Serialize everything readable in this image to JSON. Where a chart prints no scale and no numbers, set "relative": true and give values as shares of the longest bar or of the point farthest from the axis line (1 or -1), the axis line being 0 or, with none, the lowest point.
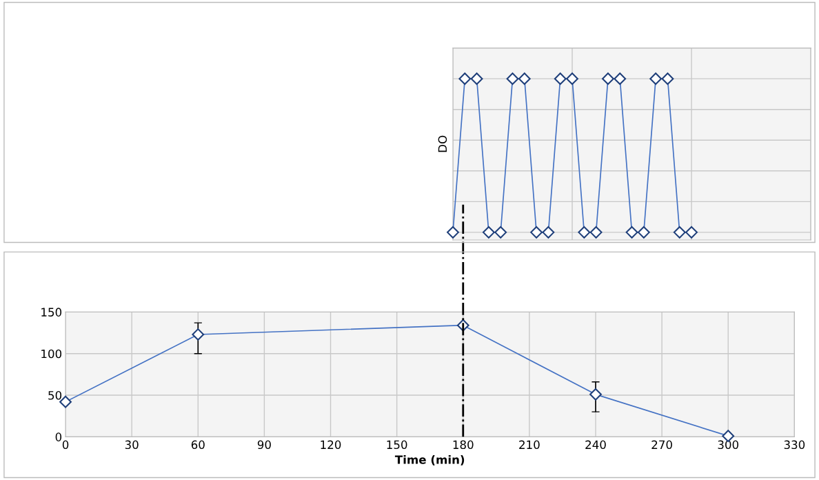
{
  "chart_data": [
    {
      "type": "line",
      "ylabel": "DO",
      "relative": true,
      "tick_labels": false,
      "grid": true,
      "marker": "diamond",
      "line_style": "solid",
      "categories": [
        null,
        null,
        null,
        null,
        null,
        null,
        null,
        null,
        null,
        null,
        null,
        null,
        null,
        null,
        null,
        null,
        null,
        null,
        null,
        null,
        null,
        null,
        null,
        null,
        null,
        null,
        null,
        null,
        null,
        null,
        null
      ],
      "series": [
        {
          "color": "#4472c4",
          "values": [
            0,
            1,
            1,
            0,
            0,
            1,
            1,
            0,
            0,
            1,
            1,
            0,
            0,
            1,
            1,
            0,
            0,
            1,
            1,
            0,
            0,
            null,
            null,
            null,
            null,
            null,
            null,
            null,
            null,
            null,
            null
          ]
        }
      ]
    },
    {
      "type": "line",
      "xlabel": "Time (min)",
      "grid": true,
      "marker": "diamond",
      "line_style": "solid",
      "x": [
        0,
        60,
        180,
        240,
        300
      ],
      "xlim": [
        0,
        330
      ],
      "xticks": [
        0,
        30,
        60,
        90,
        120,
        150,
        180,
        210,
        240,
        270,
        300,
        330
      ],
      "ylim": [
        0,
        150
      ],
      "yticks": [
        0,
        50,
        100,
        150
      ],
      "series": [
        {
          "color": "#4472c4",
          "values": [
            42,
            123,
            134,
            51,
            1
          ],
          "errors": [
            null,
            [
              100,
              137
            ],
            null,
            [
              30,
              66
            ],
            null
          ]
        }
      ],
      "ref_lines": [
        {
          "axis": "x",
          "value": 180,
          "color": "#000000",
          "line_style": "dashdot"
        }
      ]
    }
  ]
}
